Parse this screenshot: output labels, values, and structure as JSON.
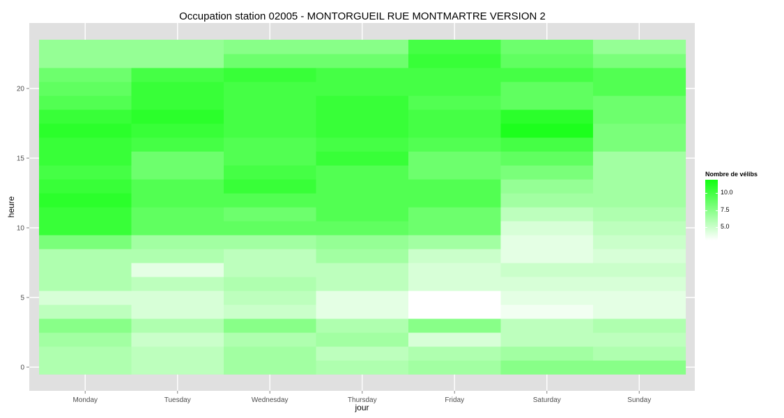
{
  "chart_data": {
    "type": "heatmap",
    "title": "Occupation station 02005 - MONTORGUEIL RUE MONTMARTRE VERSION 2",
    "xlabel": "jour",
    "ylabel": "heure",
    "x_categories": [
      "Monday",
      "Tuesday",
      "Wednesday",
      "Thursday",
      "Friday",
      "Saturday",
      "Sunday"
    ],
    "y_values": [
      0,
      1,
      2,
      3,
      4,
      5,
      6,
      7,
      8,
      9,
      10,
      11,
      12,
      13,
      14,
      15,
      16,
      17,
      18,
      19,
      20,
      21,
      22,
      23
    ],
    "y_ticks": [
      0,
      5,
      10,
      15,
      20
    ],
    "ylim": [
      -0.5,
      23.5
    ],
    "legend": {
      "title": "Nombre de vélibs",
      "ticks": [
        "5.0",
        "7.5",
        "10.0"
      ],
      "tick_values": [
        5.0,
        7.5,
        10.0
      ],
      "range": [
        3.0,
        12.0
      ],
      "low_color": "#ffffff",
      "high_color": "#10ff10"
    },
    "panel_background": "#e0e0e0",
    "grid": true,
    "values": [
      [
        6.0,
        6.0,
        6.5,
        7.5,
        5.5,
        4.5,
        6.0,
        6.0,
        6.0,
        8.0,
        10.5,
        10.5,
        11.0,
        10.5,
        10.0,
        10.5,
        10.5,
        11.0,
        10.5,
        9.5,
        9.0,
        8.5,
        7.0,
        7.0
      ],
      [
        5.5,
        5.5,
        5.0,
        6.0,
        4.5,
        4.5,
        5.5,
        4.0,
        6.0,
        6.5,
        9.0,
        9.0,
        9.5,
        9.5,
        8.5,
        8.5,
        10.0,
        10.5,
        11.0,
        10.5,
        10.5,
        10.0,
        7.0,
        7.0
      ],
      [
        6.5,
        6.5,
        6.0,
        7.5,
        5.0,
        5.5,
        6.0,
        5.5,
        5.5,
        6.5,
        9.0,
        8.5,
        9.5,
        10.5,
        10.0,
        9.5,
        9.5,
        10.0,
        10.0,
        10.0,
        10.0,
        10.5,
        8.5,
        7.5
      ],
      [
        6.0,
        5.5,
        6.5,
        6.0,
        4.0,
        4.0,
        5.5,
        5.5,
        6.5,
        7.0,
        9.0,
        9.5,
        9.5,
        9.5,
        9.5,
        10.5,
        10.0,
        10.5,
        10.5,
        10.5,
        10.0,
        10.0,
        8.5,
        7.5
      ],
      [
        6.5,
        6.0,
        4.5,
        7.5,
        3.0,
        3.0,
        4.5,
        4.5,
        5.0,
        6.5,
        8.5,
        8.5,
        9.5,
        9.5,
        8.5,
        8.5,
        9.5,
        10.0,
        10.0,
        9.5,
        10.0,
        10.0,
        10.5,
        10.0
      ],
      [
        7.5,
        6.5,
        5.5,
        5.5,
        3.5,
        4.0,
        4.5,
        5.0,
        4.0,
        4.0,
        4.5,
        5.5,
        6.5,
        7.0,
        8.0,
        9.0,
        10.0,
        11.5,
        11.0,
        9.0,
        9.0,
        10.0,
        9.0,
        8.5
      ],
      [
        7.5,
        6.0,
        5.5,
        6.0,
        4.0,
        4.0,
        4.5,
        5.0,
        4.5,
        5.0,
        5.5,
        6.0,
        6.5,
        6.5,
        6.5,
        6.5,
        8.0,
        8.0,
        8.5,
        8.5,
        9.5,
        9.5,
        8.0,
        7.0
      ]
    ]
  }
}
